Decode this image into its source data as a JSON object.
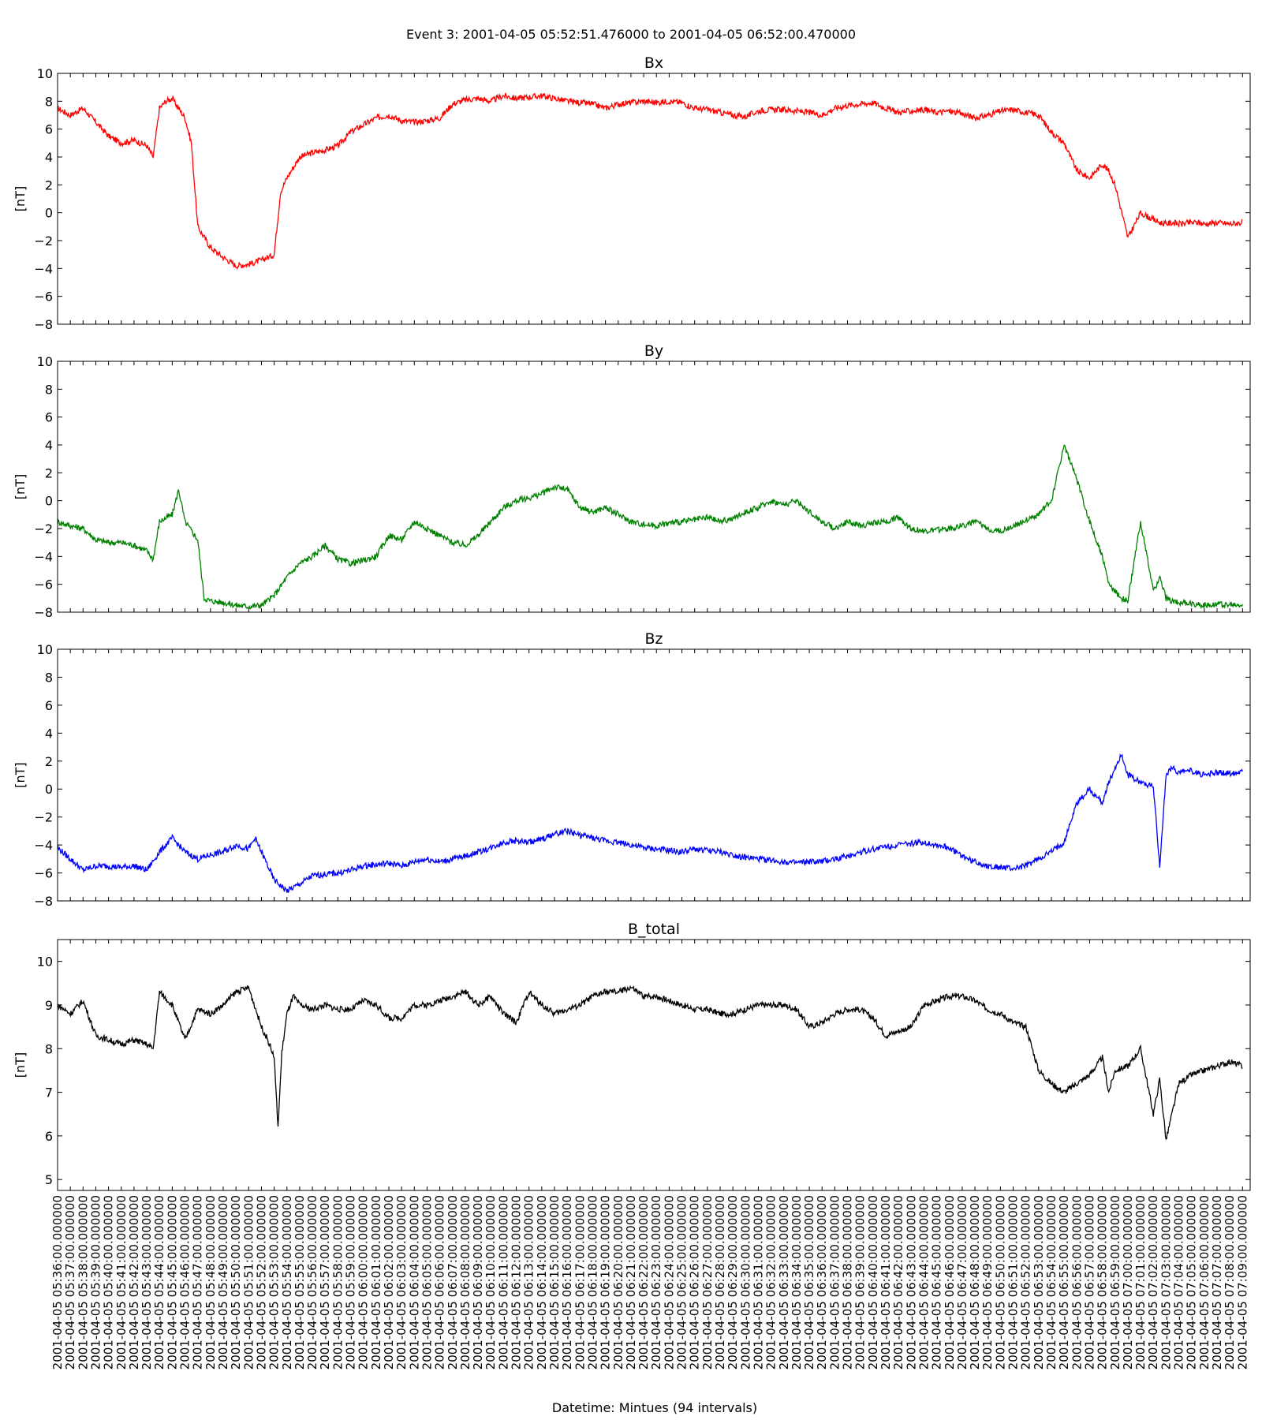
{
  "figure": {
    "suptitle": "Event 3: 2001-04-05 05:52:51.476000 to 2001-04-05 06:52:00.470000",
    "xlabel": "Datetime: Mintues (94 intervals)"
  },
  "chart_data": [
    {
      "type": "line",
      "title": "Bx",
      "ylabel": "[nT]",
      "color": "#ff0000",
      "ylim": [
        -8,
        10
      ],
      "yticks": [
        -8,
        -6,
        -4,
        -2,
        0,
        2,
        4,
        6,
        8,
        10
      ],
      "x": [
        0,
        1,
        2,
        3,
        4,
        5,
        6,
        7,
        7.5,
        8,
        8.5,
        9,
        10,
        10.5,
        11,
        12,
        13,
        14,
        15,
        16,
        17,
        17.5,
        18,
        19,
        20,
        21,
        22,
        23,
        24,
        25,
        26,
        27,
        28,
        29,
        30,
        31,
        32,
        33,
        34,
        35,
        36,
        37,
        38,
        39,
        40,
        41,
        42,
        43,
        44,
        45,
        46,
        47,
        48,
        49,
        50,
        51,
        52,
        53,
        54,
        55,
        56,
        57,
        58,
        59,
        60,
        61,
        62,
        63,
        64,
        65,
        66,
        67,
        68,
        69,
        70,
        71,
        72,
        73,
        74,
        75,
        76,
        77,
        78,
        79,
        80,
        81,
        82,
        82.5,
        83,
        84,
        85,
        86,
        86.5,
        87,
        87.5,
        88,
        89,
        89.5,
        90,
        91,
        92,
        93
      ],
      "values": [
        7.5,
        7.0,
        7.5,
        6.5,
        5.5,
        5.0,
        5.2,
        4.8,
        4.0,
        7.5,
        8.0,
        8.2,
        6.8,
        5.0,
        -1.0,
        -2.5,
        -3.2,
        -3.8,
        -3.7,
        -3.4,
        -3.0,
        1.5,
        2.5,
        4.0,
        4.3,
        4.5,
        4.8,
        5.8,
        6.3,
        6.8,
        7.0,
        6.6,
        6.5,
        6.6,
        6.8,
        7.8,
        8.1,
        8.2,
        8.0,
        8.4,
        8.2,
        8.3,
        8.4,
        8.2,
        8.0,
        7.9,
        7.8,
        7.5,
        7.8,
        7.9,
        8.0,
        7.9,
        8.0,
        7.9,
        7.5,
        7.4,
        7.2,
        7.0,
        6.9,
        7.3,
        7.4,
        7.4,
        7.3,
        7.2,
        7.0,
        7.5,
        7.7,
        7.8,
        7.9,
        7.5,
        7.2,
        7.3,
        7.4,
        7.2,
        7.3,
        7.1,
        6.8,
        7.0,
        7.3,
        7.4,
        7.2,
        7.0,
        5.8,
        5.0,
        3.0,
        2.5,
        3.5,
        3.0,
        2.0,
        -1.8,
        0.0,
        -0.5,
        -0.7,
        -0.8,
        -0.7,
        -0.8,
        -0.7,
        -0.7,
        -0.8,
        -0.7,
        -0.8,
        -0.7
      ]
    },
    {
      "type": "line",
      "title": "By",
      "ylabel": "[nT]",
      "color": "#008000",
      "ylim": [
        -8,
        10
      ],
      "yticks": [
        -8,
        -6,
        -4,
        -2,
        0,
        2,
        4,
        6,
        8,
        10
      ],
      "x": [
        0,
        1,
        2,
        3,
        4,
        5,
        6,
        7,
        7.5,
        8,
        9,
        9.5,
        10,
        11,
        11.5,
        12,
        13,
        14,
        15,
        16,
        17,
        18,
        19,
        20,
        21,
        22,
        23,
        24,
        25,
        26,
        27,
        28,
        29,
        30,
        31,
        32,
        33,
        34,
        35,
        36,
        37,
        38,
        39,
        40,
        41,
        42,
        43,
        44,
        45,
        46,
        47,
        48,
        49,
        50,
        51,
        52,
        53,
        54,
        55,
        56,
        57,
        58,
        59,
        60,
        61,
        62,
        63,
        64,
        65,
        66,
        67,
        68,
        69,
        70,
        71,
        72,
        73,
        74,
        75,
        76,
        77,
        78,
        79,
        80,
        81,
        82,
        82.5,
        83,
        83.5,
        84,
        85,
        86,
        86.5,
        87,
        87.5,
        88,
        89,
        90,
        91,
        92,
        93
      ],
      "values": [
        -1.5,
        -1.8,
        -2.0,
        -2.8,
        -3.0,
        -3.0,
        -3.2,
        -3.6,
        -4.2,
        -1.5,
        -1.0,
        0.8,
        -1.5,
        -2.8,
        -7.0,
        -7.2,
        -7.3,
        -7.5,
        -7.6,
        -7.5,
        -6.8,
        -5.5,
        -4.5,
        -4.0,
        -3.2,
        -4.2,
        -4.5,
        -4.3,
        -4.0,
        -2.5,
        -2.8,
        -1.5,
        -2.0,
        -2.5,
        -3.0,
        -3.2,
        -2.5,
        -1.5,
        -0.5,
        0.0,
        0.2,
        0.5,
        1.0,
        0.8,
        -0.5,
        -0.8,
        -0.5,
        -1.0,
        -1.5,
        -1.7,
        -1.8,
        -1.6,
        -1.5,
        -1.4,
        -1.2,
        -1.5,
        -1.3,
        -0.8,
        -0.5,
        0.0,
        -0.3,
        0.0,
        -0.8,
        -1.5,
        -2.0,
        -1.5,
        -1.8,
        -1.6,
        -1.5,
        -1.2,
        -2.0,
        -2.2,
        -2.1,
        -2.0,
        -1.8,
        -1.5,
        -2.0,
        -2.2,
        -1.8,
        -1.4,
        -1.0,
        0.0,
        4.0,
        1.5,
        -1.5,
        -4.0,
        -6.0,
        -6.5,
        -7.0,
        -7.2,
        -1.5,
        -6.5,
        -5.5,
        -7.0,
        -7.2,
        -7.3,
        -7.4,
        -7.5,
        -7.4,
        -7.5,
        -7.5
      ]
    },
    {
      "type": "line",
      "title": "Bz",
      "ylabel": "[nT]",
      "color": "#0000ff",
      "ylim": [
        -8,
        10
      ],
      "yticks": [
        -8,
        -6,
        -4,
        -2,
        0,
        2,
        4,
        6,
        8,
        10
      ],
      "x": [
        0,
        1,
        2,
        3,
        4,
        5,
        6,
        7,
        8,
        9,
        10,
        11,
        12,
        13,
        14,
        15,
        15.5,
        16,
        17,
        18,
        19,
        20,
        21,
        22,
        23,
        24,
        25,
        26,
        27,
        28,
        29,
        30,
        31,
        32,
        33,
        34,
        35,
        36,
        37,
        38,
        39,
        40,
        41,
        42,
        43,
        44,
        45,
        46,
        47,
        48,
        49,
        50,
        51,
        52,
        53,
        54,
        55,
        56,
        57,
        58,
        59,
        60,
        61,
        62,
        63,
        64,
        65,
        66,
        67,
        68,
        69,
        70,
        71,
        72,
        73,
        74,
        75,
        76,
        77,
        78,
        79,
        80,
        81,
        82,
        82.5,
        83,
        83.5,
        84,
        85,
        86,
        86.5,
        87,
        87.5,
        88,
        89,
        90,
        91,
        92,
        93
      ],
      "values": [
        -4.2,
        -5.0,
        -5.8,
        -5.5,
        -5.5,
        -5.6,
        -5.5,
        -5.8,
        -4.5,
        -3.5,
        -4.5,
        -5.0,
        -4.7,
        -4.5,
        -4.0,
        -4.3,
        -3.5,
        -4.5,
        -6.5,
        -7.3,
        -6.8,
        -6.2,
        -6.1,
        -6.0,
        -5.8,
        -5.5,
        -5.4,
        -5.3,
        -5.5,
        -5.2,
        -5.0,
        -5.2,
        -5.0,
        -4.8,
        -4.5,
        -4.2,
        -3.8,
        -3.7,
        -3.8,
        -3.6,
        -3.2,
        -3.0,
        -3.3,
        -3.5,
        -3.7,
        -3.8,
        -4.0,
        -4.2,
        -4.3,
        -4.4,
        -4.5,
        -4.3,
        -4.4,
        -4.5,
        -4.7,
        -4.9,
        -5.0,
        -5.1,
        -5.2,
        -5.3,
        -5.2,
        -5.2,
        -5.0,
        -4.8,
        -4.5,
        -4.3,
        -4.1,
        -4.0,
        -3.9,
        -3.8,
        -4.0,
        -4.2,
        -4.8,
        -5.2,
        -5.5,
        -5.6,
        -5.7,
        -5.5,
        -5.0,
        -4.5,
        -3.8,
        -1.0,
        0.0,
        -1.0,
        0.5,
        1.5,
        2.5,
        1.0,
        0.5,
        0.2,
        -5.5,
        1.0,
        1.5,
        1.2,
        1.3,
        1.0,
        1.2,
        1.1,
        1.3
      ]
    },
    {
      "type": "line",
      "title": "B_total",
      "ylabel": "[nT]",
      "color": "#000000",
      "ylim": [
        4.75,
        10.5
      ],
      "yticks": [
        5,
        6,
        7,
        8,
        9,
        10
      ],
      "x": [
        0,
        1,
        2,
        3,
        4,
        5,
        6,
        7,
        7.5,
        8,
        9,
        10,
        11,
        12,
        13,
        14,
        15,
        16,
        16.5,
        17,
        17.3,
        17.6,
        18,
        18.5,
        19,
        20,
        21,
        22,
        23,
        24,
        25,
        26,
        27,
        28,
        29,
        30,
        31,
        32,
        33,
        34,
        35,
        36,
        37,
        38,
        39,
        40,
        41,
        42,
        43,
        44,
        45,
        46,
        47,
        48,
        49,
        50,
        51,
        52,
        53,
        54,
        55,
        56,
        57,
        58,
        59,
        60,
        61,
        62,
        63,
        64,
        65,
        66,
        67,
        68,
        69,
        70,
        71,
        72,
        73,
        74,
        75,
        76,
        77,
        78,
        79,
        80,
        81,
        82,
        82.5,
        83,
        84,
        85,
        86,
        86.5,
        87,
        88,
        89,
        90,
        91,
        92,
        93
      ],
      "values": [
        9.0,
        8.8,
        9.1,
        8.3,
        8.2,
        8.1,
        8.2,
        8.1,
        8.0,
        9.3,
        9.0,
        8.2,
        8.9,
        8.8,
        9.0,
        9.3,
        9.4,
        8.5,
        8.2,
        7.8,
        6.2,
        7.9,
        8.8,
        9.2,
        9.0,
        8.9,
        9.0,
        8.9,
        8.9,
        9.1,
        9.0,
        8.7,
        8.7,
        9.0,
        9.0,
        9.1,
        9.2,
        9.3,
        9.0,
        9.2,
        8.8,
        8.6,
        9.3,
        9.0,
        8.8,
        8.9,
        9.0,
        9.2,
        9.3,
        9.3,
        9.4,
        9.2,
        9.2,
        9.1,
        9.0,
        8.9,
        8.9,
        8.8,
        8.8,
        8.9,
        9.0,
        9.0,
        9.0,
        8.9,
        8.5,
        8.6,
        8.8,
        8.9,
        8.9,
        8.7,
        8.3,
        8.4,
        8.5,
        9.0,
        9.1,
        9.2,
        9.2,
        9.1,
        8.9,
        8.8,
        8.6,
        8.5,
        7.5,
        7.2,
        7.0,
        7.2,
        7.4,
        7.8,
        7.0,
        7.5,
        7.6,
        8.0,
        6.5,
        7.3,
        5.9,
        7.2,
        7.4,
        7.5,
        7.6,
        7.7,
        7.6
      ]
    }
  ],
  "x_axis": {
    "tick_labels": [
      "2001-04-05 05:36:00.000000",
      "2001-04-05 05:37:00.000000",
      "2001-04-05 05:38:00.000000",
      "2001-04-05 05:39:00.000000",
      "2001-04-05 05:40:00.000000",
      "2001-04-05 05:41:00.000000",
      "2001-04-05 05:42:00.000000",
      "2001-04-05 05:43:00.000000",
      "2001-04-05 05:44:00.000000",
      "2001-04-05 05:45:00.000000",
      "2001-04-05 05:46:00.000000",
      "2001-04-05 05:47:00.000000",
      "2001-04-05 05:48:00.000000",
      "2001-04-05 05:49:00.000000",
      "2001-04-05 05:50:00.000000",
      "2001-04-05 05:51:00.000000",
      "2001-04-05 05:52:00.000000",
      "2001-04-05 05:53:00.000000",
      "2001-04-05 05:54:00.000000",
      "2001-04-05 05:55:00.000000",
      "2001-04-05 05:56:00.000000",
      "2001-04-05 05:57:00.000000",
      "2001-04-05 05:58:00.000000",
      "2001-04-05 05:59:00.000000",
      "2001-04-05 06:00:00.000000",
      "2001-04-05 06:01:00.000000",
      "2001-04-05 06:02:00.000000",
      "2001-04-05 06:03:00.000000",
      "2001-04-05 06:04:00.000000",
      "2001-04-05 06:05:00.000000",
      "2001-04-05 06:06:00.000000",
      "2001-04-05 06:07:00.000000",
      "2001-04-05 06:08:00.000000",
      "2001-04-05 06:09:00.000000",
      "2001-04-05 06:10:00.000000",
      "2001-04-05 06:11:00.000000",
      "2001-04-05 06:12:00.000000",
      "2001-04-05 06:13:00.000000",
      "2001-04-05 06:14:00.000000",
      "2001-04-05 06:15:00.000000",
      "2001-04-05 06:16:00.000000",
      "2001-04-05 06:17:00.000000",
      "2001-04-05 06:18:00.000000",
      "2001-04-05 06:19:00.000000",
      "2001-04-05 06:20:00.000000",
      "2001-04-05 06:21:00.000000",
      "2001-04-05 06:22:00.000000",
      "2001-04-05 06:23:00.000000",
      "2001-04-05 06:24:00.000000",
      "2001-04-05 06:25:00.000000",
      "2001-04-05 06:26:00.000000",
      "2001-04-05 06:27:00.000000",
      "2001-04-05 06:28:00.000000",
      "2001-04-05 06:29:00.000000",
      "2001-04-05 06:30:00.000000",
      "2001-04-05 06:31:00.000000",
      "2001-04-05 06:32:00.000000",
      "2001-04-05 06:33:00.000000",
      "2001-04-05 06:34:00.000000",
      "2001-04-05 06:35:00.000000",
      "2001-04-05 06:36:00.000000",
      "2001-04-05 06:37:00.000000",
      "2001-04-05 06:38:00.000000",
      "2001-04-05 06:39:00.000000",
      "2001-04-05 06:40:00.000000",
      "2001-04-05 06:41:00.000000",
      "2001-04-05 06:42:00.000000",
      "2001-04-05 06:43:00.000000",
      "2001-04-05 06:44:00.000000",
      "2001-04-05 06:45:00.000000",
      "2001-04-05 06:46:00.000000",
      "2001-04-05 06:47:00.000000",
      "2001-04-05 06:48:00.000000",
      "2001-04-05 06:49:00.000000",
      "2001-04-05 06:50:00.000000",
      "2001-04-05 06:51:00.000000",
      "2001-04-05 06:52:00.000000",
      "2001-04-05 06:53:00.000000",
      "2001-04-05 06:54:00.000000",
      "2001-04-05 06:55:00.000000",
      "2001-04-05 06:56:00.000000",
      "2001-04-05 06:57:00.000000",
      "2001-04-05 06:58:00.000000",
      "2001-04-05 06:59:00.000000",
      "2001-04-05 07:00:00.000000",
      "2001-04-05 07:01:00.000000",
      "2001-04-05 07:02:00.000000",
      "2001-04-05 07:03:00.000000",
      "2001-04-05 07:04:00.000000",
      "2001-04-05 07:05:00.000000",
      "2001-04-05 07:06:00.000000",
      "2001-04-05 07:07:00.000000",
      "2001-04-05 07:08:00.000000",
      "2001-04-05 07:09:00.000000"
    ]
  }
}
